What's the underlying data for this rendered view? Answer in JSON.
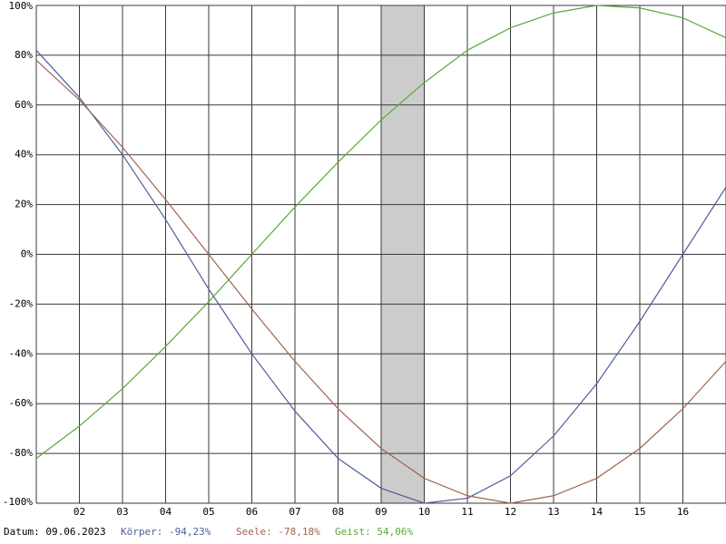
{
  "chart_data": {
    "type": "line",
    "categories": [
      null,
      "02",
      "03",
      "04",
      "05",
      "06",
      "07",
      "08",
      "09",
      "10",
      "11",
      "12",
      "13",
      "14",
      "15",
      "16",
      null
    ],
    "series": [
      {
        "name": "Körper",
        "color": "#4f5f98",
        "values": [
          82,
          63,
          40,
          14,
          -14,
          -40,
          -63,
          -82,
          -94,
          -100,
          -98,
          -89,
          -73,
          -52,
          -27,
          0,
          27
        ]
      },
      {
        "name": "Seele",
        "color": "#a0644e",
        "values": [
          78,
          62,
          43,
          22,
          0,
          -22,
          -43,
          -62,
          -78,
          -90,
          -97,
          -100,
          -97,
          -90,
          -78,
          -62,
          -43
        ]
      },
      {
        "name": "Geist",
        "color": "#5aa83c",
        "values": [
          -82,
          -69,
          -54,
          -37,
          -19,
          0,
          19,
          37,
          54,
          69,
          82,
          91,
          97,
          100,
          99,
          95,
          87
        ]
      }
    ],
    "ylim": [
      -100,
      100
    ],
    "yticks": [
      {
        "value": 100,
        "label": "100%"
      },
      {
        "value": 80,
        "label": "80%"
      },
      {
        "value": 60,
        "label": "60%"
      },
      {
        "value": 40,
        "label": "40%"
      },
      {
        "value": 20,
        "label": "20%"
      },
      {
        "value": 0,
        "label": "0%"
      },
      {
        "value": -20,
        "label": "-20%"
      },
      {
        "value": -40,
        "label": "-40%"
      },
      {
        "value": -60,
        "label": "-60%"
      },
      {
        "value": -80,
        "label": "-80%"
      },
      {
        "value": -100,
        "label": "-100%"
      }
    ],
    "grid": true,
    "highlight": "09",
    "footer": {
      "date": "Datum: 09.06.2023",
      "koerper": "Körper: -94,23%",
      "seele": "Seele: -78,18%",
      "geist": "Geist: 54,06%"
    }
  }
}
